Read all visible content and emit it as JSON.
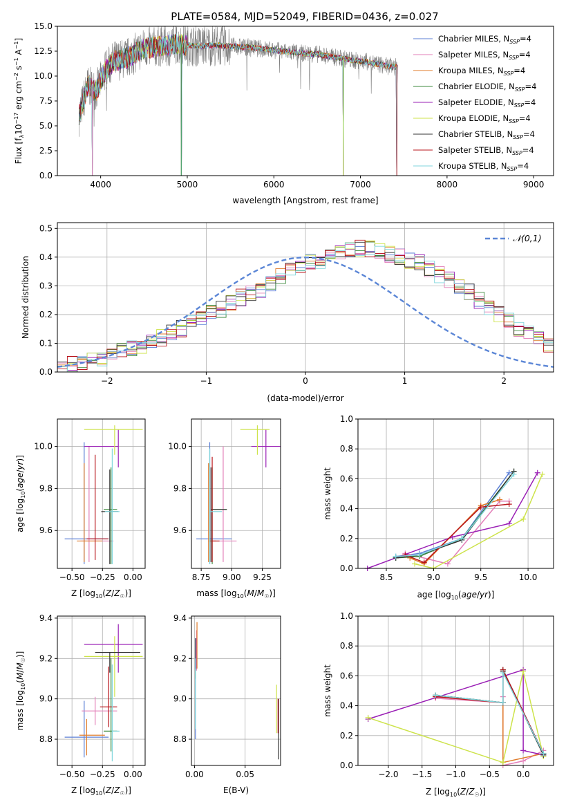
{
  "figure_title": "PLATE=0584, MJD=52049, FIBERID=0436, z=0.027",
  "series_styles": [
    {
      "name": "Chabrier MILES, N_SSP=4",
      "color": "#5b7fd6"
    },
    {
      "name": "Salpeter MILES, N_SSP=4",
      "color": "#e37fb8"
    },
    {
      "name": "Kroupa MILES, N_SSP=4",
      "color": "#e07b2a"
    },
    {
      "name": "Chabrier ELODIE, N_SSP=4",
      "color": "#3c8a3c"
    },
    {
      "name": "Salpeter ELODIE, N_SSP=4",
      "color": "#9a1fb5"
    },
    {
      "name": "Kroupa ELODIE, N_SSP=4",
      "color": "#cde34a"
    },
    {
      "name": "Chabrier STELIB, N_SSP=4",
      "color": "#333333"
    },
    {
      "name": "Salpeter STELIB, N_SSP=4",
      "color": "#b8141b"
    },
    {
      "name": "Kroupa STELIB, N_SSP=4",
      "color": "#7fd6dc"
    }
  ],
  "chart_data": [
    {
      "id": "spectrum",
      "type": "line",
      "xlabel": "wavelength [Angstrom, rest frame]",
      "ylabel": "Flux [f_λ 10^-17 erg cm^-2 s^-1 A^-1]",
      "xlim": [
        3500,
        9230
      ],
      "ylim": [
        0,
        15
      ],
      "xticks": [
        4000,
        5000,
        6000,
        7000,
        8000,
        9000
      ],
      "yticks": [
        0.0,
        2.5,
        5.0,
        7.5,
        10.0,
        12.5,
        15.0
      ],
      "legend_position": "upper-right",
      "data_color": "#808080",
      "data_x_range": [
        3750,
        7430
      ],
      "model_envelope": {
        "x": [
          3750,
          3850,
          3950,
          4050,
          4150,
          4300,
          4500,
          4700,
          4900,
          5100,
          5300,
          5500,
          5700,
          5900,
          6100,
          6300,
          6500,
          6700,
          6900,
          7100,
          7300,
          7430
        ],
        "y": [
          6.0,
          9.0,
          8.5,
          10.5,
          11.5,
          11.8,
          12.8,
          13.0,
          13.2,
          13.0,
          13.1,
          13.0,
          12.9,
          12.7,
          12.5,
          12.3,
          12.2,
          11.9,
          11.6,
          11.4,
          11.0,
          10.9
        ]
      },
      "dropouts": [
        3905,
        4930,
        6800,
        7420
      ]
    },
    {
      "id": "residuals",
      "type": "histogram",
      "xlabel": "(data-model)/error",
      "ylabel": "Normed distribution",
      "xlim": [
        -2.5,
        2.5
      ],
      "ylim": [
        0,
        0.52
      ],
      "xticks": [
        -2,
        -1,
        0,
        1,
        2
      ],
      "yticks": [
        0.0,
        0.1,
        0.2,
        0.3,
        0.4,
        0.5
      ],
      "grid": true,
      "legend_position": "upper-right",
      "reference_curve": {
        "name": "𝒩(0,1)",
        "mean": 0,
        "std": 1,
        "color": "#5b86d6"
      },
      "bin_edges_start": -2.5,
      "bin_width": 0.1,
      "base_values": [
        0.015,
        0.025,
        0.035,
        0.04,
        0.05,
        0.06,
        0.07,
        0.08,
        0.09,
        0.1,
        0.12,
        0.14,
        0.15,
        0.17,
        0.19,
        0.21,
        0.22,
        0.24,
        0.26,
        0.27,
        0.29,
        0.31,
        0.33,
        0.35,
        0.36,
        0.38,
        0.39,
        0.4,
        0.41,
        0.42,
        0.43,
        0.43,
        0.42,
        0.41,
        0.4,
        0.39,
        0.38,
        0.36,
        0.34,
        0.32,
        0.3,
        0.28,
        0.25,
        0.23,
        0.2,
        0.18,
        0.15,
        0.13,
        0.11,
        0.09
      ],
      "tail_values": [
        0.085,
        0.08,
        0.07,
        0.06,
        0.055,
        0.05,
        0.04,
        0.035,
        0.03,
        0.025,
        0.02,
        0.015,
        0.01
      ]
    },
    {
      "id": "age-vs-metallicity",
      "type": "errorbar",
      "xlabel": "Z [log10(Z/Z☉)]",
      "ylabel": "age  [log10(age/yr)]",
      "xlim": [
        -0.62,
        0.1
      ],
      "ylim": [
        9.42,
        10.13
      ],
      "xticks": [
        -0.5,
        -0.25,
        0.0
      ],
      "yticks": [
        9.6,
        9.8,
        10.0
      ],
      "points": [
        {
          "x": -0.4,
          "y": 9.56,
          "xerr": [
            0.16,
            0.2
          ],
          "yerr": [
            0.12,
            0.46
          ]
        },
        {
          "x": -0.36,
          "y": 9.55,
          "xerr": [
            0.07,
            0.2
          ],
          "yerr": [
            0.1,
            0.45
          ]
        },
        {
          "x": -0.4,
          "y": 9.55,
          "xerr": [
            0.06,
            0.15
          ],
          "yerr": [
            0.1,
            0.37
          ]
        },
        {
          "x": -0.18,
          "y": 9.7,
          "xerr": [
            0.06,
            0.05
          ],
          "yerr": [
            0.26,
            0.2
          ]
        },
        {
          "x": -0.12,
          "y": 10.0,
          "xerr": [
            0.28,
            0.0
          ],
          "yerr": [
            0.1,
            0.08
          ]
        },
        {
          "x": -0.15,
          "y": 10.08,
          "xerr": [
            0.25,
            0.23
          ],
          "yerr": [
            0.12,
            0.02
          ]
        },
        {
          "x": -0.19,
          "y": 9.69,
          "xerr": [
            0.07,
            0.07
          ],
          "yerr": [
            0.25,
            0.2
          ]
        },
        {
          "x": -0.31,
          "y": 9.56,
          "xerr": [
            0.07,
            0.11
          ],
          "yerr": [
            0.1,
            0.4
          ]
        },
        {
          "x": -0.17,
          "y": 9.69,
          "xerr": [
            0.06,
            0.06
          ],
          "yerr": [
            0.25,
            0.3
          ]
        }
      ]
    },
    {
      "id": "age-vs-mass",
      "type": "errorbar",
      "xlabel": "mass [log10(M/M☉)]",
      "ylabel": "",
      "xlim": [
        8.67,
        9.4
      ],
      "ylim": [
        9.42,
        10.13
      ],
      "xticks": [
        8.75,
        9.0,
        9.25
      ],
      "yticks": [
        9.6,
        9.8,
        10.0
      ],
      "points": [
        {
          "x": 8.82,
          "y": 9.56,
          "xerr": [
            0.11,
            0.18
          ],
          "yerr": [
            0.12,
            0.46
          ]
        },
        {
          "x": 8.93,
          "y": 9.55,
          "xerr": [
            0.12,
            0.11
          ],
          "yerr": [
            0.1,
            0.45
          ]
        },
        {
          "x": 8.81,
          "y": 9.55,
          "xerr": [
            0.0,
            0.06
          ],
          "yerr": [
            0.1,
            0.37
          ]
        },
        {
          "x": 8.84,
          "y": 9.7,
          "xerr": [
            0.0,
            0.12
          ],
          "yerr": [
            0.26,
            0.2
          ]
        },
        {
          "x": 9.28,
          "y": 10.0,
          "xerr": [
            0.12,
            0.12
          ],
          "yerr": [
            0.1,
            0.08
          ]
        },
        {
          "x": 9.21,
          "y": 10.08,
          "xerr": [
            0.14,
            0.1
          ],
          "yerr": [
            0.12,
            0.02
          ]
        },
        {
          "x": 8.83,
          "y": 9.7,
          "xerr": [
            0.0,
            0.13
          ],
          "yerr": [
            0.25,
            0.2
          ]
        },
        {
          "x": 8.84,
          "y": 9.55,
          "xerr": [
            0.0,
            0.06
          ],
          "yerr": [
            0.1,
            0.4
          ]
        },
        {
          "x": 8.82,
          "y": 9.69,
          "xerr": [
            0.0,
            0.1
          ],
          "yerr": [
            0.25,
            0.3
          ]
        }
      ]
    },
    {
      "id": "mass-weight-vs-age",
      "type": "line",
      "xlabel": "age  [log10(age/yr)]",
      "ylabel": "mass weight",
      "xlim": [
        8.2,
        10.27
      ],
      "ylim": [
        0,
        1
      ],
      "xticks": [
        8.5,
        9.0,
        9.5,
        10.0
      ],
      "yticks": [
        0.0,
        0.2,
        0.4,
        0.6,
        0.8,
        1.0
      ],
      "grid": true,
      "series": [
        {
          "x": [
            8.6,
            8.85,
            9.3,
            9.8
          ],
          "y": [
            0.08,
            0.1,
            0.2,
            0.64
          ]
        },
        {
          "x": [
            8.7,
            9.15,
            9.7,
            9.8
          ],
          "y": [
            0.1,
            0.03,
            0.45,
            0.45
          ]
        },
        {
          "x": [
            8.75,
            8.9,
            9.5,
            9.7
          ],
          "y": [
            0.07,
            0.03,
            0.42,
            0.46
          ]
        },
        {
          "x": [
            8.6,
            8.85,
            9.3,
            9.85
          ],
          "y": [
            0.07,
            0.08,
            0.2,
            0.65
          ]
        },
        {
          "x": [
            8.3,
            9.2,
            9.8,
            10.1
          ],
          "y": [
            0.0,
            0.21,
            0.3,
            0.64
          ]
        },
        {
          "x": [
            8.8,
            9.0,
            9.95,
            10.15
          ],
          "y": [
            0.03,
            0.0,
            0.33,
            0.63
          ]
        },
        {
          "x": [
            8.6,
            8.85,
            9.3,
            9.85
          ],
          "y": [
            0.07,
            0.09,
            0.19,
            0.65
          ]
        },
        {
          "x": [
            8.7,
            8.9,
            9.5,
            9.8
          ],
          "y": [
            0.09,
            0.04,
            0.41,
            0.43
          ]
        },
        {
          "x": [
            8.6,
            8.85,
            9.3,
            9.85
          ],
          "y": [
            0.08,
            0.09,
            0.2,
            0.63
          ]
        }
      ]
    },
    {
      "id": "mass-vs-metallicity",
      "type": "errorbar",
      "xlabel": "Z [log10(Z/Z☉)]",
      "ylabel": "mass [log10(M/M☉)]",
      "xlim": [
        -0.62,
        0.1
      ],
      "ylim": [
        8.67,
        9.41
      ],
      "xticks": [
        -0.5,
        -0.25,
        0.0
      ],
      "yticks": [
        8.8,
        9.0,
        9.2,
        9.4
      ],
      "points": [
        {
          "x": -0.4,
          "y": 8.81,
          "xerr": [
            0.16,
            0.2
          ],
          "yerr": [
            0.1,
            0.18
          ]
        },
        {
          "x": -0.31,
          "y": 8.94,
          "xerr": [
            0.11,
            0.18
          ],
          "yerr": [
            0.07,
            0.07
          ]
        },
        {
          "x": -0.38,
          "y": 8.82,
          "xerr": [
            0.06,
            0.15
          ],
          "yerr": [
            0.1,
            0.08
          ]
        },
        {
          "x": -0.18,
          "y": 8.84,
          "xerr": [
            0.06,
            0.05
          ],
          "yerr": [
            0.1,
            0.36
          ]
        },
        {
          "x": -0.12,
          "y": 9.27,
          "xerr": [
            0.28,
            0.2
          ],
          "yerr": [
            0.14,
            0.1
          ]
        },
        {
          "x": -0.15,
          "y": 9.21,
          "xerr": [
            0.25,
            0.23
          ],
          "yerr": [
            0.2,
            0.1
          ]
        },
        {
          "x": -0.19,
          "y": 9.23,
          "xerr": [
            0.12,
            0.25
          ],
          "yerr": [
            0.1,
            0.0
          ]
        },
        {
          "x": -0.2,
          "y": 8.96,
          "xerr": [
            0.07,
            0.07
          ],
          "yerr": [
            0.1,
            0.2
          ]
        },
        {
          "x": -0.17,
          "y": 8.84,
          "xerr": [
            0.0,
            0.06
          ],
          "yerr": [
            0.15,
            0.33
          ]
        }
      ]
    },
    {
      "id": "mass-vs-extinction",
      "type": "errorbar",
      "xlabel": "E(B-V)",
      "ylabel": "",
      "xlim": [
        -0.003,
        0.085
      ],
      "ylim": [
        8.67,
        9.41
      ],
      "xticks": [
        0.0,
        0.05
      ],
      "yticks": [
        8.8,
        9.0,
        9.2,
        9.4
      ],
      "points": [
        {
          "x": 0.001,
          "y": 9.1,
          "xerr": [
            0,
            0
          ],
          "yerr": [
            0.3,
            0.2
          ]
        },
        {
          "x": 0.002,
          "y": 9.2,
          "xerr": [
            0,
            0
          ],
          "yerr": [
            0.06,
            0.14
          ]
        },
        {
          "x": 0.0025,
          "y": 9.25,
          "xerr": [
            0,
            0
          ],
          "yerr": [
            0.1,
            0.13
          ]
        },
        {
          "x": 0.001,
          "y": 9.15,
          "xerr": [
            0,
            0
          ],
          "yerr": [
            0.05,
            0.15
          ]
        },
        {
          "x": 0.0015,
          "y": 9.25,
          "xerr": [
            0,
            0
          ],
          "yerr": [
            0.1,
            0.05
          ]
        },
        {
          "x": 0.081,
          "y": 8.95,
          "xerr": [
            0,
            0
          ],
          "yerr": [
            0.12,
            0.12
          ]
        },
        {
          "x": 0.083,
          "y": 8.85,
          "xerr": [
            0,
            0
          ],
          "yerr": [
            0.15,
            0.15
          ]
        },
        {
          "x": 0.0825,
          "y": 8.83,
          "xerr": [
            0,
            0
          ],
          "yerr": [
            0.0,
            0.17
          ]
        },
        {
          "x": 0.001,
          "y": 9.0,
          "xerr": [
            0,
            0
          ],
          "yerr": [
            0.15,
            0.2
          ]
        }
      ]
    },
    {
      "id": "mass-weight-vs-metallicity",
      "type": "line",
      "xlabel": "Z [log10(Z/Z☉)]",
      "ylabel": "mass weight",
      "xlim": [
        -2.45,
        0.45
      ],
      "ylim": [
        0,
        1
      ],
      "xticks": [
        -2.0,
        -1.5,
        -1.0,
        -0.5,
        0.0
      ],
      "yticks": [
        0.0,
        0.2,
        0.4,
        0.6,
        0.8,
        1.0
      ],
      "grid": true,
      "series": [
        {
          "x": [
            -1.3,
            -0.3,
            -0.3,
            0.3
          ],
          "y": [
            0.47,
            0.42,
            0.64,
            0.08
          ]
        },
        {
          "x": [
            -1.3,
            -0.3,
            -0.3,
            -0.3,
            0.0,
            0.3
          ],
          "y": [
            0.45,
            0.42,
            0.46,
            0.0,
            0.03,
            0.1
          ]
        },
        {
          "x": [
            -1.3,
            -0.3,
            -0.3,
            0.3,
            0.3
          ],
          "y": [
            0.46,
            0.42,
            0.02,
            0.08,
            0.06
          ]
        },
        {
          "x": [
            -1.3,
            -0.3,
            -0.3,
            0.3
          ],
          "y": [
            0.47,
            0.42,
            0.64,
            0.07
          ]
        },
        {
          "x": [
            -2.3,
            0.0,
            0.0,
            0.3
          ],
          "y": [
            0.31,
            0.64,
            0.1,
            0.07
          ]
        },
        {
          "x": [
            -2.3,
            -0.3,
            0.0,
            0.3
          ],
          "y": [
            0.32,
            0.02,
            0.63,
            0.06
          ]
        },
        {
          "x": [
            -1.3,
            -0.3,
            -0.3,
            0.3
          ],
          "y": [
            0.47,
            0.42,
            0.63,
            0.07
          ]
        },
        {
          "x": [
            -1.3,
            -0.3,
            -0.3,
            0.3
          ],
          "y": [
            0.46,
            0.42,
            0.64,
            0.08
          ]
        },
        {
          "x": [
            -1.3,
            -0.3,
            -0.3,
            0.3
          ],
          "y": [
            0.47,
            0.42,
            0.62,
            0.08
          ]
        }
      ]
    }
  ]
}
